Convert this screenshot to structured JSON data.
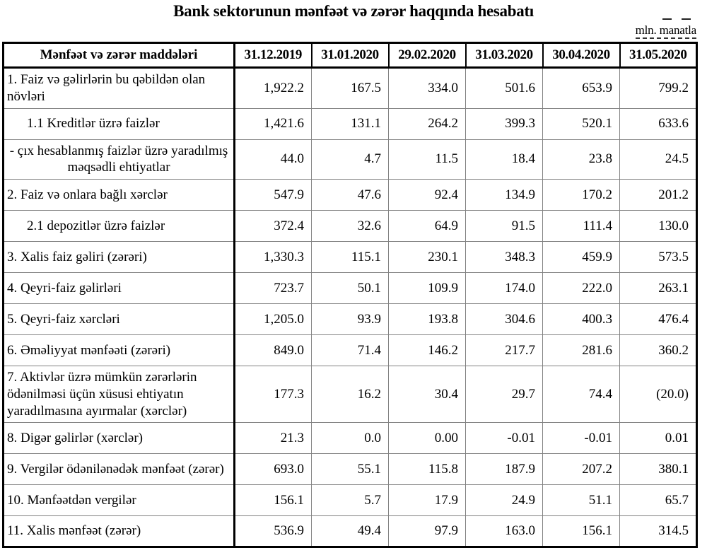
{
  "title": "Bank sektorunun mənfəət və zərər haqqında hesabatı",
  "unit_note": "mln. manatla",
  "table": {
    "header": {
      "label_col": "Mənfəət və zərər maddələri",
      "date_cols": [
        "31.12.2019",
        "31.01.2020",
        "29.02.2020",
        "31.03.2020",
        "30.04.2020",
        "31.05.2020"
      ]
    },
    "rows": [
      {
        "label": "1. Faiz və gəlirlərin bu qəbildən olan növləri",
        "indent": false,
        "center": false,
        "values": [
          "1,922.2",
          "167.5",
          "334.0",
          "501.6",
          "653.9",
          "799.2"
        ]
      },
      {
        "label": "1.1 Kreditlər üzrə faizlər",
        "indent": true,
        "center": false,
        "values": [
          "1,421.6",
          "131.1",
          "264.2",
          "399.3",
          "520.1",
          "633.6"
        ]
      },
      {
        "label": "-  çıx hesablanmış faizlər üzrə yaradılmış məqsədli ehtiyatlar",
        "indent": false,
        "center": true,
        "values": [
          "44.0",
          "4.7",
          "11.5",
          "18.4",
          "23.8",
          "24.5"
        ]
      },
      {
        "label": "2. Faiz və onlara bağlı xərclər",
        "indent": false,
        "center": false,
        "values": [
          "547.9",
          "47.6",
          "92.4",
          "134.9",
          "170.2",
          "201.2"
        ]
      },
      {
        "label": "2.1 depozitlər üzrə faizlər",
        "indent": true,
        "center": false,
        "values": [
          "372.4",
          "32.6",
          "64.9",
          "91.5",
          "111.4",
          "130.0"
        ]
      },
      {
        "label": "3. Xalis faiz gəliri (zərəri)",
        "indent": false,
        "center": false,
        "values": [
          "1,330.3",
          "115.1",
          "230.1",
          "348.3",
          "459.9",
          "573.5"
        ]
      },
      {
        "label": "4. Qeyri-faiz gəlirləri",
        "indent": false,
        "center": false,
        "values": [
          "723.7",
          "50.1",
          "109.9",
          "174.0",
          "222.0",
          "263.1"
        ]
      },
      {
        "label": "5. Qeyri-faiz xərcləri",
        "indent": false,
        "center": false,
        "values": [
          "1,205.0",
          "93.9",
          "193.8",
          "304.6",
          "400.3",
          "476.4"
        ]
      },
      {
        "label": "6. Əməliyyat mənfəəti (zərəri)",
        "indent": false,
        "center": false,
        "values": [
          "849.0",
          "71.4",
          "146.2",
          "217.7",
          "281.6",
          "360.2"
        ]
      },
      {
        "label": "7. Aktivlər üzrə mümkün zərərlərin ödənilməsi üçün xüsusi ehtiyatın yaradılmasına ayırmalar (xərclər)",
        "indent": false,
        "center": false,
        "values": [
          "177.3",
          "16.2",
          "30.4",
          "29.7",
          "74.4",
          "(20.0)"
        ]
      },
      {
        "label": "8. Digər gəlirlər (xərclər)",
        "indent": false,
        "center": false,
        "values": [
          "21.3",
          "0.0",
          "0.00",
          "-0.01",
          "-0.01",
          "0.01"
        ]
      },
      {
        "label": "9. Vergilər ödənilənədək mənfəət (zərər)",
        "indent": false,
        "center": false,
        "values": [
          "693.0",
          "55.1",
          "115.8",
          "187.9",
          "207.2",
          "380.1"
        ]
      },
      {
        "label": "10. Mənfəətdən vergilər",
        "indent": false,
        "center": false,
        "values": [
          "156.1",
          "5.7",
          "17.9",
          "24.9",
          "51.1",
          "65.7"
        ]
      },
      {
        "label": "11. Xalis mənfəət (zərər)",
        "indent": false,
        "center": false,
        "values": [
          "536.9",
          "49.4",
          "97.9",
          "163.0",
          "156.1",
          "314.5"
        ]
      }
    ]
  },
  "colors": {
    "text": "#000000",
    "outer_border": "#000000",
    "inner_grid": "#828282",
    "background": "#ffffff"
  }
}
